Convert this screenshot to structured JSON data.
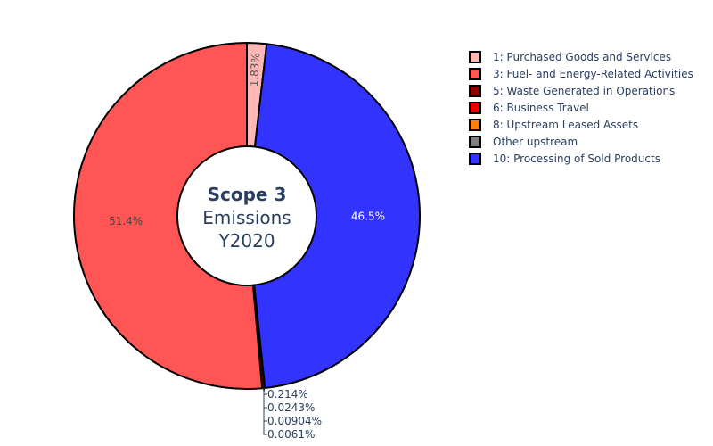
{
  "chart_data": {
    "type": "pie",
    "hole": true,
    "center_label": {
      "title": "Scope 3",
      "line2": "Emissions",
      "line3": "Y2020"
    },
    "legend_placement": "top-right",
    "slices": [
      {
        "label": "1: Purchased Goods and Services",
        "percent": 1.83,
        "text": "1.83%",
        "color": "#ffb8b8"
      },
      {
        "label": "10: Processing of Sold Products",
        "percent": 46.5,
        "text": "46.5%",
        "color": "#3333ff"
      },
      {
        "label": "Other upstream",
        "percent": 0.0243,
        "text": "0.0243%",
        "color": "#808080"
      },
      {
        "label": "8: Upstream Leased Assets",
        "percent": 0.0061,
        "text": "0.0061%",
        "color": "#ff7f0e"
      },
      {
        "label": "6: Business Travel",
        "percent": 0.00904,
        "text": "0.00904%",
        "color": "#e60000"
      },
      {
        "label": "5: Waste Generated in Operations",
        "percent": 0.214,
        "text": "0.214%",
        "color": "#8b0000"
      },
      {
        "label": "3: Fuel- and Energy-Related Activities",
        "percent": 51.4,
        "text": "51.4%",
        "color": "#ff5555"
      }
    ],
    "legend_order": [
      "1: Purchased Goods and Services",
      "3: Fuel- and Energy-Related Activities",
      "5: Waste Generated in Operations",
      "6: Business Travel",
      "8: Upstream Leased Assets",
      "Other upstream",
      "10: Processing of Sold Products"
    ]
  }
}
